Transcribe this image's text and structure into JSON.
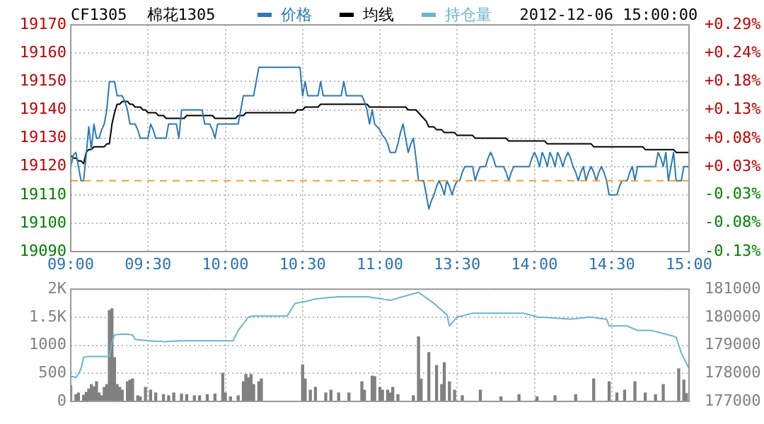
{
  "chart_data": [
    {
      "type": "line",
      "title": "CF1305",
      "subtitle": "棉花1305",
      "annotations": [
        "2012-12-06 15:00:00"
      ],
      "legend": "top",
      "grid": true,
      "categories": [
        "09:00",
        null,
        null,
        null,
        null,
        null,
        null,
        null,
        null,
        null,
        null,
        null,
        null,
        null,
        null,
        null,
        null,
        null,
        null,
        null,
        null,
        null,
        null,
        null,
        null,
        null,
        null,
        null,
        null,
        null,
        "09:30",
        null,
        null,
        null,
        null,
        null,
        null,
        null,
        null,
        null,
        null,
        null,
        null,
        null,
        null,
        null,
        null,
        null,
        null,
        null,
        null,
        null,
        null,
        null,
        null,
        null,
        null,
        null,
        null,
        null,
        "10:00",
        null,
        null,
        null,
        null,
        null,
        null,
        null,
        null,
        null,
        null,
        null,
        null,
        null,
        null,
        null,
        null,
        null,
        null,
        null,
        null,
        null,
        null,
        null,
        null,
        null,
        null,
        null,
        null,
        null,
        "10:30",
        null,
        null,
        null,
        null,
        null,
        null,
        null,
        null,
        null,
        null,
        null,
        null,
        null,
        null,
        null,
        null,
        null,
        null,
        null,
        null,
        null,
        null,
        null,
        null,
        null,
        null,
        null,
        null,
        null,
        "11:00",
        null,
        null,
        null,
        null,
        null,
        null,
        null,
        null,
        null,
        null,
        null,
        null,
        null,
        null,
        null,
        null,
        null,
        null,
        null,
        null,
        null,
        null,
        null,
        null,
        null,
        null,
        null,
        null,
        null,
        "13:30",
        null,
        null,
        null,
        null,
        null,
        null,
        null,
        null,
        null,
        null,
        null,
        null,
        null,
        null,
        null,
        null,
        null,
        null,
        null,
        null,
        null,
        null,
        null,
        null,
        null,
        null,
        null,
        null,
        null,
        "14:00",
        null,
        null,
        null,
        null,
        null,
        null,
        null,
        null,
        null,
        null,
        null,
        null,
        null,
        null,
        null,
        null,
        null,
        null,
        null,
        null,
        null,
        null,
        null,
        null,
        null,
        null,
        null,
        null,
        null,
        "14:30",
        null,
        null,
        null,
        null,
        null,
        null,
        null,
        null,
        null,
        null,
        null,
        null,
        null,
        null,
        null,
        null,
        null,
        null,
        null,
        null,
        null,
        null,
        null,
        null,
        null,
        null,
        null,
        null,
        null,
        "15:00"
      ],
      "ylim": [
        19090,
        19170
      ],
      "yticks": [
        19090,
        19100,
        19110,
        19120,
        19130,
        19140,
        19150,
        19160,
        19170
      ],
      "y2lim": [
        -0.131,
        0.288
      ],
      "y2ticks": [
        {
          "value": -0.131,
          "label": "-0.13%"
        },
        {
          "value": -0.078,
          "label": "-0.08%"
        },
        {
          "value": -0.026,
          "label": "-0.03%"
        },
        {
          "value": 0.026,
          "label": "+0.03%"
        },
        {
          "value": 0.078,
          "label": "+0.08%"
        },
        {
          "value": 0.131,
          "label": "+0.13%"
        },
        {
          "value": 0.183,
          "label": "+0.18%"
        },
        {
          "value": 0.235,
          "label": "+0.24%"
        },
        {
          "value": 0.288,
          "label": "+0.29%"
        }
      ],
      "ref_lines": [
        {
          "axis": "y",
          "value": 19115,
          "color": "#f0a030",
          "line_style": "dashed"
        }
      ],
      "series": [
        {
          "name": "价格",
          "color": "#2a7ab8",
          "values": [
            19120,
            19124,
            19125,
            19120,
            19115,
            19115,
            19124,
            19134,
            19126,
            19135,
            19130,
            19130,
            19133,
            19135,
            19140,
            19150,
            19150,
            19150,
            19145,
            19145,
            19145,
            19143,
            19140,
            19135,
            19135,
            19135,
            19133,
            19130,
            19130,
            19130,
            19130,
            19135,
            19133,
            19130,
            19130,
            19130,
            19130,
            19130,
            19135,
            19135,
            19135,
            19135,
            19130,
            19140,
            19140,
            19140,
            19140,
            19140,
            19140,
            19140,
            19140,
            19140,
            19135,
            19135,
            19135,
            19133,
            19130,
            19135,
            19135,
            19135,
            19135,
            19135,
            19135,
            19135,
            19135,
            19135,
            19140,
            19145,
            19145,
            19145,
            19145,
            19145,
            19150,
            19155,
            19155,
            19155,
            19155,
            19155,
            19155,
            19155,
            19155,
            19155,
            19155,
            19155,
            19155,
            19155,
            19155,
            19155,
            19155,
            19155,
            19145,
            19150,
            19145,
            19145,
            19145,
            19145,
            19145,
            19150,
            19145,
            19145,
            19145,
            19145,
            19145,
            19145,
            19145,
            19145,
            19150,
            19145,
            19145,
            19145,
            19145,
            19145,
            19145,
            19145,
            19143,
            19140,
            19135,
            19140,
            19135,
            19134,
            19133,
            19131,
            19130,
            19128,
            19125,
            19125,
            19125,
            19128,
            19132,
            19135,
            19130,
            19125,
            19128,
            19130,
            19123,
            19115,
            19115,
            19115,
            19110,
            19105,
            19108,
            19110,
            19113,
            19115,
            19113,
            19110,
            19115,
            19113,
            19110,
            19113,
            19115,
            19115,
            19118,
            19120,
            19120,
            19120,
            19120,
            19115,
            19118,
            19120,
            19120,
            19120,
            19123,
            19125,
            19123,
            19120,
            19120,
            19120,
            19120,
            19118,
            19115,
            19118,
            19120,
            19120,
            19120,
            19120,
            19120,
            19120,
            19120,
            19123,
            19125,
            19123,
            19120,
            19125,
            19123,
            19120,
            19125,
            19123,
            19120,
            19125,
            19123,
            19120,
            19123,
            19125,
            19123,
            19120,
            19118,
            19115,
            19118,
            19120,
            19115,
            19118,
            19120,
            19118,
            19115,
            19118,
            19120,
            19118,
            19115,
            19110,
            19110,
            19110,
            19110,
            19113,
            19115,
            19115,
            19115,
            19118,
            19120,
            19115,
            19120,
            19120,
            19120,
            19120,
            19120,
            19120,
            19120,
            19120,
            19125,
            19123,
            19120,
            19125,
            19115,
            19120,
            19125,
            19115,
            19115,
            19115,
            19120,
            19120,
            19120
          ]
        },
        {
          "name": "均线",
          "color": "#000000",
          "values": [
            19124,
            19123,
            19123,
            19122,
            19122,
            19121,
            19125,
            19126,
            19126,
            19127,
            19127,
            19127,
            19127,
            19127,
            19128,
            19128,
            19135,
            19139,
            19142,
            19142,
            19143,
            19143,
            19143,
            19142,
            19142,
            19141,
            19141,
            19141,
            19140,
            19140,
            19139,
            19139,
            19139,
            19139,
            19138,
            19138,
            19138,
            19137,
            19137,
            19137,
            19137,
            19137,
            19137,
            19137,
            19137,
            19138,
            19138,
            19138,
            19138,
            19138,
            19138,
            19138,
            19138,
            19138,
            19138,
            19138,
            19137,
            19137,
            19137,
            19137,
            19137,
            19137,
            19137,
            19137,
            19137,
            19138,
            19138,
            19138,
            19139,
            19139,
            19139,
            19139,
            19139,
            19139,
            19139,
            19139,
            19139,
            19139,
            19139,
            19139,
            19139,
            19139,
            19139,
            19139,
            19139,
            19139,
            19139,
            19139,
            19140,
            19140,
            19140,
            19141,
            19141,
            19141,
            19141,
            19141,
            19141,
            19142,
            19142,
            19142,
            19142,
            19142,
            19142,
            19142,
            19142,
            19142,
            19142,
            19142,
            19142,
            19142,
            19142,
            19142,
            19142,
            19142,
            19142,
            19142,
            19141,
            19141,
            19141,
            19141,
            19141,
            19141,
            19141,
            19141,
            19141,
            19141,
            19141,
            19141,
            19141,
            19141,
            19141,
            19140,
            19140,
            19140,
            19140,
            19139,
            19138,
            19137,
            19136,
            19134,
            19134,
            19134,
            19133,
            19133,
            19133,
            19132,
            19132,
            19132,
            19132,
            19132,
            19131,
            19131,
            19131,
            19131,
            19131,
            19131,
            19131,
            19130,
            19130,
            19130,
            19130,
            19130,
            19130,
            19130,
            19130,
            19130,
            19130,
            19130,
            19130,
            19130,
            19129,
            19129,
            19129,
            19129,
            19129,
            19129,
            19129,
            19129,
            19129,
            19129,
            19129,
            19129,
            19129,
            19129,
            19129,
            19128,
            19128,
            19128,
            19128,
            19128,
            19128,
            19128,
            19128,
            19128,
            19128,
            19128,
            19128,
            19128,
            19128,
            19128,
            19128,
            19128,
            19128,
            19127,
            19127,
            19127,
            19127,
            19127,
            19127,
            19127,
            19127,
            19127,
            19127,
            19127,
            19127,
            19127,
            19127,
            19127,
            19127,
            19127,
            19127,
            19127,
            19127,
            19126,
            19126,
            19126,
            19126,
            19126,
            19126,
            19126,
            19126,
            19126,
            19126,
            19126,
            19126,
            19125,
            19125,
            19125,
            19125,
            19125,
            19125
          ]
        }
      ]
    },
    {
      "type": "bar",
      "legend": "top",
      "grid": true,
      "tick_labels": "y",
      "categories": [
        null,
        null,
        null,
        null,
        null,
        null,
        null,
        null,
        null,
        null,
        null,
        null,
        null,
        null,
        null,
        null,
        null,
        null,
        null,
        null,
        null,
        null,
        null,
        null,
        null,
        null,
        null,
        null,
        null,
        null,
        null,
        null,
        null,
        null,
        null,
        null,
        null,
        null,
        null,
        null,
        null,
        null,
        null,
        null,
        null,
        null,
        null,
        null,
        null,
        null,
        null,
        null,
        null,
        null,
        null,
        null,
        null,
        null,
        null,
        null,
        null,
        null,
        null,
        null,
        null,
        null,
        null,
        null,
        null,
        null,
        null,
        null,
        null,
        null,
        null,
        null,
        null,
        null,
        null,
        null,
        null,
        null,
        null,
        null,
        null,
        null,
        null,
        null,
        null,
        null,
        null,
        null,
        null,
        null,
        null,
        null,
        null,
        null,
        null,
        null,
        null,
        null,
        null,
        null,
        null,
        null,
        null,
        null,
        null,
        null,
        null,
        null,
        null,
        null,
        null,
        null,
        null,
        null,
        null,
        null,
        null,
        null,
        null,
        null,
        null,
        null,
        null,
        null,
        null,
        null,
        null,
        null,
        null,
        null,
        null,
        null,
        null,
        null,
        null,
        null,
        null,
        null,
        null,
        null,
        null,
        null,
        null,
        null,
        null,
        null,
        null,
        null,
        null,
        null,
        null,
        null,
        null,
        null,
        null,
        null,
        null,
        null,
        null,
        null,
        null,
        null,
        null,
        null,
        null,
        null,
        null,
        null,
        null,
        null,
        null,
        null,
        null,
        null,
        null,
        null,
        null,
        null,
        null,
        null,
        null,
        null,
        null,
        null,
        null,
        null,
        null,
        null,
        null,
        null,
        null,
        null,
        null,
        null,
        null,
        null,
        null,
        null,
        null,
        null,
        null,
        null,
        null,
        null,
        null,
        null,
        null,
        null,
        null,
        null,
        null,
        null,
        null,
        null,
        null,
        null,
        null,
        null,
        null,
        null,
        null,
        null,
        null,
        null,
        null,
        null,
        null,
        null,
        null,
        null,
        null,
        null,
        null,
        null,
        null,
        null,
        null
      ],
      "ylim": [
        0,
        2000
      ],
      "yticks": [
        0,
        500,
        1000,
        {
          "value": 1500,
          "label": "1.5K"
        },
        {
          "value": 2000,
          "label": "2K"
        }
      ],
      "y2lim": [
        177000,
        181000
      ],
      "y2ticks": [
        177000,
        178000,
        179000,
        180000,
        181000
      ],
      "series": [
        {
          "color": "#808080",
          "values": [
            280,
            null,
            120,
            150,
            null,
            110,
            160,
            220,
            300,
            260,
            350,
            150,
            100,
            250,
            300,
            1620,
            1650,
            780,
            300,
            250,
            200,
            null,
            350,
            380,
            400,
            null,
            100,
            80,
            null,
            250,
            null,
            200,
            null,
            150,
            null,
            null,
            120,
            null,
            100,
            null,
            150,
            null,
            null,
            130,
            null,
            120,
            null,
            null,
            100,
            null,
            100,
            null,
            null,
            120,
            null,
            null,
            130,
            null,
            null,
            500,
            150,
            null,
            80,
            null,
            null,
            100,
            null,
            350,
            480,
            420,
            480,
            300,
            null,
            350,
            400,
            null,
            null,
            null,
            null,
            null,
            null,
            null,
            null,
            null,
            null,
            null,
            null,
            null,
            null,
            null,
            650,
            400,
            null,
            200,
            null,
            250,
            null,
            null,
            null,
            150,
            null,
            200,
            null,
            null,
            150,
            null,
            null,
            null,
            150,
            null,
            null,
            null,
            null,
            350,
            200,
            null,
            null,
            450,
            440,
            null,
            250,
            200,
            null,
            200,
            150,
            250,
            null,
            120,
            null,
            null,
            null,
            null,
            null,
            100,
            null,
            1150,
            400,
            null,
            null,
            870,
            null,
            null,
            640,
            null,
            300,
            690,
            null,
            350,
            null,
            200,
            null,
            null,
            100,
            null,
            null,
            null,
            null,
            null,
            null,
            200,
            null,
            null,
            null,
            null,
            null,
            null,
            null,
            80,
            null,
            null,
            null,
            null,
            null,
            null,
            120,
            null,
            null,
            null,
            null,
            null,
            null,
            80,
            null,
            null,
            null,
            null,
            null,
            null,
            100,
            null,
            null,
            null,
            null,
            null,
            null,
            null,
            120,
            null,
            null,
            null,
            null,
            null,
            null,
            400,
            null,
            null,
            null,
            null,
            null,
            350,
            null,
            null,
            150,
            null,
            null,
            200,
            null,
            null,
            null,
            350,
            null,
            null,
            null,
            150,
            null,
            null,
            null,
            120,
            null,
            null,
            300,
            null,
            null,
            null,
            null,
            null,
            580,
            null,
            380,
            140,
            null
          ]
        },
        {
          "name": "持仓量",
          "type": "line",
          "axis": "y2",
          "color": "#6ab4d0",
          "values": [
            177880,
            177880,
            177850,
            177980,
            178170,
            178570,
            178590,
            178600,
            178600,
            178600,
            178600,
            178600,
            178600,
            178600,
            178600,
            178600,
            179100,
            179370,
            179380,
            179390,
            179400,
            179390,
            179390,
            179380,
            179370,
            179210,
            179200,
            179190,
            179180,
            179170,
            179160,
            179160,
            179150,
            179150,
            179140,
            179140,
            179130,
            179130,
            179140,
            179140,
            179150,
            179150,
            179160,
            179160,
            179160,
            179160,
            179160,
            179160,
            179160,
            179160,
            179160,
            179160,
            179160,
            179160,
            179160,
            179160,
            179160,
            179160,
            179160,
            179160,
            179160,
            179160,
            179160,
            179160,
            179350,
            179530,
            179650,
            179770,
            179890,
            180010,
            180030,
            180040,
            180040,
            180040,
            180040,
            180040,
            180040,
            180040,
            180040,
            180040,
            180040,
            180040,
            180040,
            180040,
            180040,
            180190,
            180340,
            180490,
            180510,
            180530,
            180550,
            180560,
            180580,
            180600,
            180630,
            180650,
            180660,
            180670,
            180680,
            180690,
            180700,
            180710,
            180710,
            180720,
            180730,
            180730,
            180730,
            180730,
            180730,
            180730,
            180730,
            180730,
            180730,
            180730,
            180730,
            180730,
            180720,
            180700,
            180690,
            180680,
            180660,
            180650,
            180630,
            180620,
            180600,
            180630,
            180650,
            180680,
            180710,
            180730,
            180760,
            180790,
            180810,
            180840,
            180860,
            180890,
            180820,
            180760,
            180690,
            180620,
            180560,
            180490,
            180410,
            180330,
            180250,
            180170,
            180090,
            179690,
            179800,
            179900,
            180010,
            180030,
            180050,
            180070,
            180100,
            180120,
            180140,
            180140,
            180140,
            180140,
            180140,
            180140,
            180140,
            180140,
            180140,
            180140,
            180140,
            180140,
            180140,
            180140,
            180140,
            180140,
            180140,
            180140,
            180140,
            180140,
            180140,
            180110,
            180090,
            180060,
            180040,
            180010,
            180000,
            180000,
            179990,
            179990,
            179980,
            179980,
            179970,
            179960,
            179960,
            179950,
            179940,
            179940,
            179930,
            179940,
            179950,
            179960,
            179970,
            179980,
            179990,
            180010,
            180000,
            179990,
            179980,
            179960,
            179950,
            179940,
            179930,
            179690,
            179690,
            179690,
            179690,
            179690,
            179690,
            179690,
            179690,
            179650,
            179610,
            179570,
            179530,
            179530,
            179530,
            179530,
            179530,
            179530,
            179510,
            179490,
            179470,
            179440,
            179420,
            179400,
            179370,
            179350,
            179320,
            179290,
            179010,
            178730,
            178540,
            178360,
            178170
          ]
        }
      ]
    }
  ]
}
